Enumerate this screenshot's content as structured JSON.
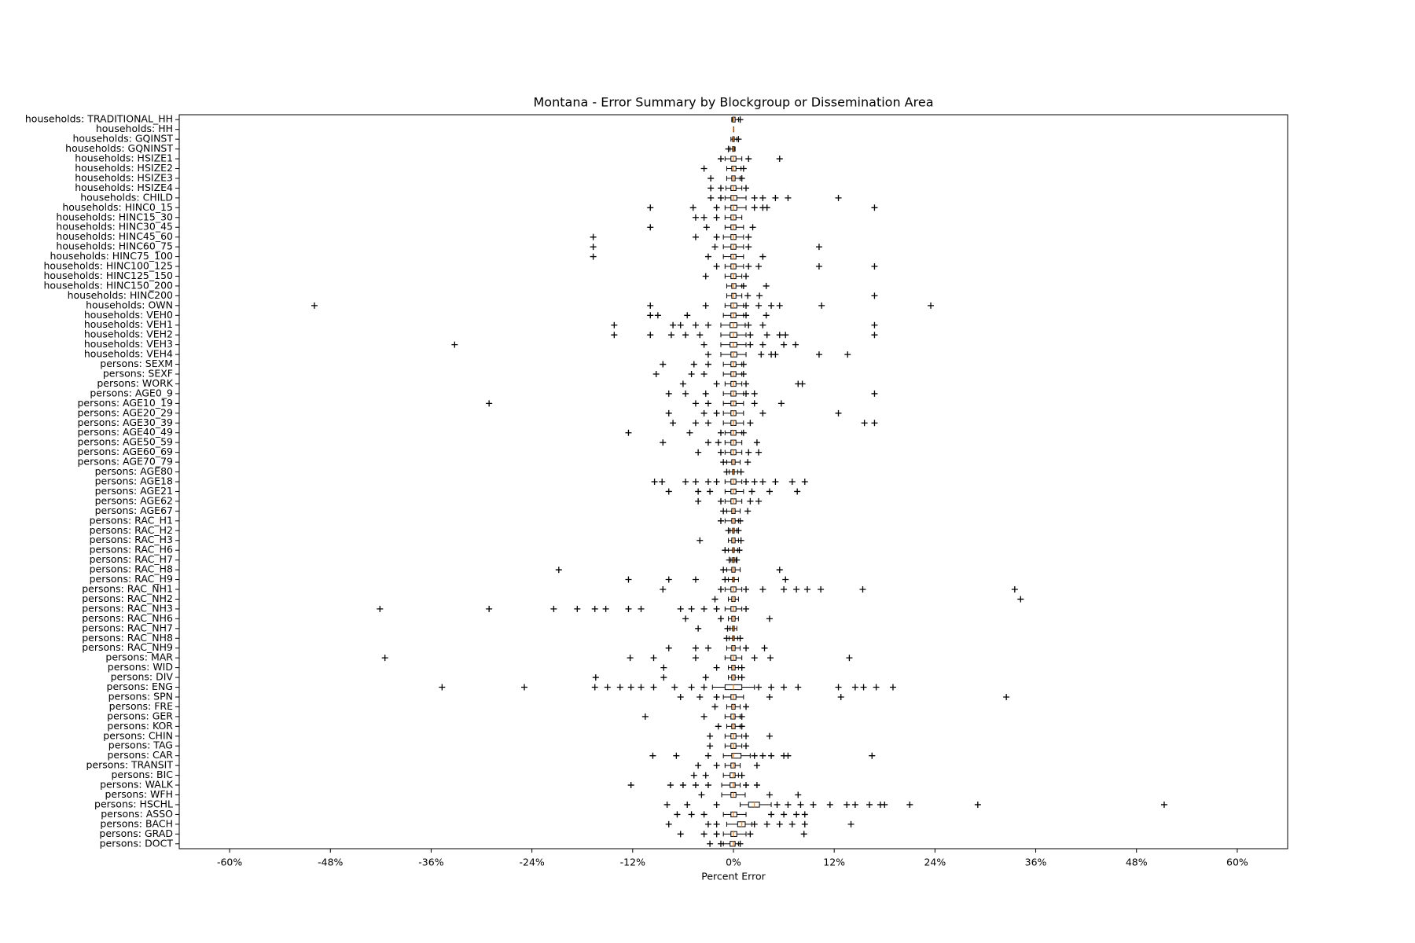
{
  "chart_data": {
    "type": "boxplot",
    "orientation": "horizontal",
    "title": "Montana - Error Summary by Blockgroup or Dissemination Area",
    "x_label": "Percent Error",
    "xlim": [
      -66,
      66
    ],
    "xticks": [
      {
        "value": -60,
        "label": "-60%"
      },
      {
        "value": -48,
        "label": "-48%"
      },
      {
        "value": -36,
        "label": "-36%"
      },
      {
        "value": -24,
        "label": "-24%"
      },
      {
        "value": -12,
        "label": "-12%"
      },
      {
        "value": 0,
        "label": "0%"
      },
      {
        "value": 12,
        "label": "12%"
      },
      {
        "value": 24,
        "label": "24%"
      },
      {
        "value": 36,
        "label": "36%"
      },
      {
        "value": 48,
        "label": "48%"
      },
      {
        "value": 60,
        "label": "60%"
      }
    ],
    "box_color": "#000000",
    "median_color": "#ff7f0e",
    "flier_color": "#000000",
    "categories": [
      "households: TRADITIONAL_HH",
      "households: HH",
      "households: GQINST",
      "households: GQNINST",
      "households: HSIZE1",
      "households: HSIZE2",
      "households: HSIZE3",
      "households: HSIZE4",
      "households: CHILD",
      "households: HINC0_15",
      "households: HINC15_30",
      "households: HINC30_45",
      "households: HINC45_60",
      "households: HINC60_75",
      "households: HINC75_100",
      "households: HINC100_125",
      "households: HINC125_150",
      "households: HINC150_200",
      "households: HINC200",
      "households: OWN",
      "households: VEH0",
      "households: VEH1",
      "households: VEH2",
      "households: VEH3",
      "households: VEH4",
      "persons: SEXM",
      "persons: SEXF",
      "persons: WORK",
      "persons: AGE0_9",
      "persons: AGE10_19",
      "persons: AGE20_29",
      "persons: AGE30_39",
      "persons: AGE40_49",
      "persons: AGE50_59",
      "persons: AGE60_69",
      "persons: AGE70_79",
      "persons: AGE80",
      "persons: AGE18",
      "persons: AGE21",
      "persons: AGE62",
      "persons: AGE67",
      "persons: RAC_H1",
      "persons: RAC_H2",
      "persons: RAC_H3",
      "persons: RAC_H6",
      "persons: RAC_H7",
      "persons: RAC_H8",
      "persons: RAC_H9",
      "persons: RAC_NH1",
      "persons: RAC_NH2",
      "persons: RAC_NH3",
      "persons: RAC_NH6",
      "persons: RAC_NH7",
      "persons: RAC_NH8",
      "persons: RAC_NH9",
      "persons: MAR",
      "persons: WID",
      "persons: DIV",
      "persons: ENG",
      "persons: SPN",
      "persons: FRE",
      "persons: GER",
      "persons: KOR",
      "persons: CHIN",
      "persons: TAG",
      "persons: CAR",
      "persons: TRANSIT",
      "persons: BIC",
      "persons: WALK",
      "persons: WFH",
      "persons: HSCHL",
      "persons: ASSO",
      "persons: BACH",
      "persons: GRAD",
      "persons: DOCT"
    ],
    "boxes": [
      {
        "low": -0.2,
        "q1": -0.1,
        "median": 0,
        "q3": 0.2,
        "high": 0.6,
        "fliers": [
          0.8
        ]
      },
      {
        "low": 0,
        "q1": 0,
        "median": 0,
        "q3": 0,
        "high": 0,
        "fliers": []
      },
      {
        "low": -0.3,
        "q1": -0.1,
        "median": 0,
        "q3": 0.1,
        "high": 0.4,
        "fliers": [
          0.6
        ]
      },
      {
        "low": -0.4,
        "q1": -0.1,
        "median": 0,
        "q3": 0.1,
        "high": 0.2,
        "fliers": [
          -0.6
        ]
      },
      {
        "low": -1,
        "q1": -0.3,
        "median": 0,
        "q3": 0.3,
        "high": 1,
        "fliers": [
          -1.5,
          1.8,
          5.5
        ]
      },
      {
        "low": -0.8,
        "q1": -0.2,
        "median": 0,
        "q3": 0.3,
        "high": 0.9,
        "fliers": [
          -3.5,
          1.2
        ]
      },
      {
        "low": -0.8,
        "q1": -0.2,
        "median": 0,
        "q3": 0.2,
        "high": 0.8,
        "fliers": [
          -2.7,
          1
        ]
      },
      {
        "low": -0.9,
        "q1": -0.3,
        "median": 0,
        "q3": 0.3,
        "high": 1,
        "fliers": [
          -2.7,
          -1.5,
          1.5
        ]
      },
      {
        "low": -1,
        "q1": -0.3,
        "median": 0,
        "q3": 0.4,
        "high": 1.5,
        "fliers": [
          -2.7,
          -1.5,
          2.5,
          3.5,
          5,
          6.5,
          12.5
        ]
      },
      {
        "low": -1,
        "q1": -0.3,
        "median": 0,
        "q3": 0.4,
        "high": 1.5,
        "fliers": [
          -9.9,
          -4.8,
          -2,
          2.5,
          3.5,
          4,
          16.8
        ]
      },
      {
        "low": -1,
        "q1": -0.3,
        "median": 0,
        "q3": 0.3,
        "high": 1,
        "fliers": [
          -4.5,
          -3.5,
          -2
        ]
      },
      {
        "low": -1,
        "q1": -0.3,
        "median": 0,
        "q3": 0.3,
        "high": 1.2,
        "fliers": [
          -9.9,
          -3.2,
          2.3
        ]
      },
      {
        "low": -1.2,
        "q1": -0.3,
        "median": 0,
        "q3": 0.3,
        "high": 1.2,
        "fliers": [
          -16.7,
          -4.5,
          -2,
          1.8
        ]
      },
      {
        "low": -1.2,
        "q1": -0.3,
        "median": 0,
        "q3": 0.3,
        "high": 1.2,
        "fliers": [
          -16.7,
          -2.2,
          1.8,
          10.2
        ]
      },
      {
        "low": -1.2,
        "q1": -0.3,
        "median": 0,
        "q3": 0.3,
        "high": 1.2,
        "fliers": [
          -16.7,
          -3,
          3.5
        ]
      },
      {
        "low": -1,
        "q1": -0.3,
        "median": 0,
        "q3": 0.3,
        "high": 1.2,
        "fliers": [
          -2,
          1.8,
          3,
          10.2,
          16.8
        ]
      },
      {
        "low": -1,
        "q1": -0.3,
        "median": 0,
        "q3": 0.3,
        "high": 1,
        "fliers": [
          -3.3,
          1.5
        ]
      },
      {
        "low": -0.8,
        "q1": -0.2,
        "median": 0,
        "q3": 0.3,
        "high": 1,
        "fliers": [
          1.2,
          3.9
        ]
      },
      {
        "low": -0.8,
        "q1": -0.2,
        "median": 0,
        "q3": 0.3,
        "high": 1,
        "fliers": [
          1.7,
          3.1,
          16.8
        ]
      },
      {
        "low": -1,
        "q1": -0.3,
        "median": 0,
        "q3": 0.4,
        "high": 1.2,
        "fliers": [
          -49.9,
          -9.9,
          -3.3,
          1.5,
          3,
          4.5,
          5.5,
          10.5,
          23.5
        ]
      },
      {
        "low": -1.2,
        "q1": -0.3,
        "median": 0,
        "q3": 0.3,
        "high": 1.2,
        "fliers": [
          -9.9,
          -9,
          -5.5,
          1.5,
          3.9
        ]
      },
      {
        "low": -1.5,
        "q1": -0.4,
        "median": 0,
        "q3": 0.4,
        "high": 1.4,
        "fliers": [
          -14.2,
          -7.2,
          -6.3,
          -4.5,
          -3,
          1.8,
          3.5,
          16.8
        ]
      },
      {
        "low": -1.5,
        "q1": -0.4,
        "median": 0,
        "q3": 0.4,
        "high": 1.5,
        "fliers": [
          -14.2,
          -9.9,
          -7.4,
          -5.7,
          -4,
          2,
          4,
          5.5,
          6.2,
          16.8
        ]
      },
      {
        "low": -1.5,
        "q1": -0.4,
        "median": 0,
        "q3": 0.4,
        "high": 1.5,
        "fliers": [
          -33.2,
          -3.5,
          2,
          3.5,
          6,
          7.4
        ]
      },
      {
        "low": -1.5,
        "q1": -0.3,
        "median": 0,
        "q3": 0.4,
        "high": 1.5,
        "fliers": [
          -3,
          3.3,
          4.5,
          5,
          10.2,
          13.6
        ]
      },
      {
        "low": -1.2,
        "q1": -0.3,
        "median": 0,
        "q3": 0.3,
        "high": 1,
        "fliers": [
          -8.4,
          -4.7,
          -3,
          1.2
        ]
      },
      {
        "low": -1.2,
        "q1": -0.3,
        "median": 0,
        "q3": 0.3,
        "high": 1,
        "fliers": [
          -9.2,
          -5,
          -3.5,
          1.2
        ]
      },
      {
        "low": -1,
        "q1": -0.3,
        "median": 0,
        "q3": 0.3,
        "high": 1,
        "fliers": [
          -6,
          -2,
          1.5,
          7.7,
          8.2
        ]
      },
      {
        "low": -1.2,
        "q1": -0.3,
        "median": 0,
        "q3": 0.3,
        "high": 1.2,
        "fliers": [
          -7.7,
          -5.7,
          -3.3,
          1.5,
          2.5,
          16.8
        ]
      },
      {
        "low": -1.2,
        "q1": -0.3,
        "median": 0,
        "q3": 0.3,
        "high": 1.2,
        "fliers": [
          -29.1,
          -4.5,
          -3,
          2.5,
          5.7
        ]
      },
      {
        "low": -1.2,
        "q1": -0.3,
        "median": 0,
        "q3": 0.3,
        "high": 1.2,
        "fliers": [
          -7.7,
          -3.5,
          -2,
          3.5,
          12.5
        ]
      },
      {
        "low": -1.2,
        "q1": -0.3,
        "median": 0,
        "q3": 0.3,
        "high": 1.2,
        "fliers": [
          -7.2,
          -4.5,
          -3,
          2,
          15.6,
          16.8
        ]
      },
      {
        "low": -1,
        "q1": -0.3,
        "median": 0,
        "q3": 0.3,
        "high": 1,
        "fliers": [
          -12.5,
          -5.2,
          -1.5,
          1.2
        ]
      },
      {
        "low": -1,
        "q1": -0.3,
        "median": 0,
        "q3": 0.3,
        "high": 1,
        "fliers": [
          -8.4,
          -3,
          -1.8,
          2.8
        ]
      },
      {
        "low": -1,
        "q1": -0.3,
        "median": 0,
        "q3": 0.3,
        "high": 1,
        "fliers": [
          -4.2,
          -1.5,
          1.8,
          3
        ]
      },
      {
        "low": -0.8,
        "q1": -0.2,
        "median": 0,
        "q3": 0.2,
        "high": 0.8,
        "fliers": [
          -1.2,
          1.7
        ]
      },
      {
        "low": -0.5,
        "q1": -0.1,
        "median": 0,
        "q3": 0.1,
        "high": 0.5,
        "fliers": [
          -0.8,
          0.9
        ]
      },
      {
        "low": -1,
        "q1": -0.3,
        "median": 0,
        "q3": 0.3,
        "high": 1,
        "fliers": [
          -9.4,
          -8.5,
          -5.7,
          -4.5,
          -3,
          -2,
          1.5,
          2.5,
          3.5,
          5,
          7,
          8.5
        ]
      },
      {
        "low": -1,
        "q1": -0.3,
        "median": 0,
        "q3": 0.3,
        "high": 1.2,
        "fliers": [
          -7.7,
          -4.2,
          -2.8,
          2.2,
          4.3,
          7.6
        ]
      },
      {
        "low": -1,
        "q1": -0.3,
        "median": 0,
        "q3": 0.3,
        "high": 1,
        "fliers": [
          -4.2,
          -1.5,
          2,
          3
        ]
      },
      {
        "low": -0.8,
        "q1": -0.2,
        "median": 0,
        "q3": 0.2,
        "high": 0.8,
        "fliers": [
          -1.2,
          1.7
        ]
      },
      {
        "low": -1,
        "q1": -0.2,
        "median": 0,
        "q3": 0.2,
        "high": 0.6,
        "fliers": [
          -1.5,
          0.8
        ]
      },
      {
        "low": -0.4,
        "q1": -0.1,
        "median": 0,
        "q3": 0.1,
        "high": 0.4,
        "fliers": [
          -0.6,
          0.6
        ]
      },
      {
        "low": -0.6,
        "q1": -0.2,
        "median": 0,
        "q3": 0.2,
        "high": 0.6,
        "fliers": [
          -4,
          0.9
        ]
      },
      {
        "low": -0.6,
        "q1": -0.1,
        "median": 0,
        "q3": 0.1,
        "high": 0.5,
        "fliers": [
          -1,
          0.7
        ]
      },
      {
        "low": -0.3,
        "q1": -0.1,
        "median": 0,
        "q3": 0.1,
        "high": 0.3,
        "fliers": [
          -0.5,
          0.4
        ]
      },
      {
        "low": -0.8,
        "q1": -0.2,
        "median": 0,
        "q3": 0.2,
        "high": 0.8,
        "fliers": [
          -20.8,
          -1.2,
          5.5
        ]
      },
      {
        "low": -0.6,
        "q1": -0.1,
        "median": 0,
        "q3": 0.1,
        "high": 0.6,
        "fliers": [
          -12.5,
          -7.7,
          -4.5,
          -1,
          6.2
        ]
      },
      {
        "low": -1,
        "q1": -0.3,
        "median": 0,
        "q3": 0.3,
        "high": 1,
        "fliers": [
          -8.4,
          -1.5,
          1.5,
          3.5,
          6,
          7.5,
          8.8,
          10.4,
          15.4,
          33.5
        ]
      },
      {
        "low": -0.6,
        "q1": -0.2,
        "median": 0,
        "q3": 0.2,
        "high": 0.6,
        "fliers": [
          -2.2,
          34.2
        ]
      },
      {
        "low": -1,
        "q1": -0.3,
        "median": 0,
        "q3": 0.3,
        "high": 1,
        "fliers": [
          -42.1,
          -29.1,
          -21.4,
          -18.6,
          -16.5,
          -15.2,
          -12.5,
          -11,
          -6.3,
          -5,
          -3.5,
          -2,
          1.5
        ]
      },
      {
        "low": -0.6,
        "q1": -0.2,
        "median": 0,
        "q3": 0.2,
        "high": 0.6,
        "fliers": [
          -5.7,
          -1.5,
          4.3
        ]
      },
      {
        "low": -0.4,
        "q1": -0.1,
        "median": 0,
        "q3": 0.1,
        "high": 0.4,
        "fliers": [
          -4.2,
          -0.7
        ]
      },
      {
        "low": -0.5,
        "q1": -0.1,
        "median": 0,
        "q3": 0.1,
        "high": 0.5,
        "fliers": [
          -0.8,
          0.8
        ]
      },
      {
        "low": -0.8,
        "q1": -0.2,
        "median": 0,
        "q3": 0.2,
        "high": 0.8,
        "fliers": [
          -7.7,
          -4.5,
          -3,
          1.5,
          3.7
        ]
      },
      {
        "low": -1,
        "q1": -0.3,
        "median": 0,
        "q3": 0.3,
        "high": 1,
        "fliers": [
          -41.5,
          -12.3,
          -9.5,
          -4.5,
          2.5,
          4.4,
          13.8
        ]
      },
      {
        "low": -0.6,
        "q1": -0.2,
        "median": 0,
        "q3": 0.2,
        "high": 0.6,
        "fliers": [
          -8.3,
          -2,
          1
        ]
      },
      {
        "low": -0.6,
        "q1": -0.2,
        "median": 0,
        "q3": 0.2,
        "high": 0.6,
        "fliers": [
          -16.4,
          -8.3,
          -3.3,
          1
        ]
      },
      {
        "low": -2.5,
        "q1": -1,
        "median": 0,
        "q3": 1,
        "high": 2.5,
        "fliers": [
          -34.7,
          -24.9,
          -16.5,
          -15,
          -13.5,
          -12.2,
          -11,
          -9.5,
          -7,
          -5,
          -3.5,
          3,
          4.5,
          6,
          7.7,
          12.5,
          14.5,
          15.5,
          17,
          19
        ]
      },
      {
        "low": -1.2,
        "q1": -0.3,
        "median": 0,
        "q3": 0.3,
        "high": 1.2,
        "fliers": [
          -6.3,
          -4,
          -2,
          4.3,
          12.8,
          32.5
        ]
      },
      {
        "low": -0.8,
        "q1": -0.2,
        "median": 0,
        "q3": 0.2,
        "high": 0.8,
        "fliers": [
          -2.2,
          1.5
        ]
      },
      {
        "low": -1,
        "q1": -0.3,
        "median": 0,
        "q3": 0.2,
        "high": 0.8,
        "fliers": [
          -10.5,
          -3.5,
          1
        ]
      },
      {
        "low": -0.8,
        "q1": -0.2,
        "median": 0,
        "q3": 0.2,
        "high": 0.8,
        "fliers": [
          -1.8,
          1
        ]
      },
      {
        "low": -1,
        "q1": -0.3,
        "median": 0,
        "q3": 0.3,
        "high": 1,
        "fliers": [
          -2.8,
          1.5,
          4.3
        ]
      },
      {
        "low": -1,
        "q1": -0.3,
        "median": 0,
        "q3": 0.3,
        "high": 1,
        "fliers": [
          -2.8,
          1.5
        ]
      },
      {
        "low": -1.2,
        "q1": -0.2,
        "median": 0,
        "q3": 0.9,
        "high": 2,
        "fliers": [
          -9.6,
          -6.8,
          -3,
          2.5,
          3.5,
          4.5,
          6,
          6.5,
          16.5
        ]
      },
      {
        "low": -1,
        "q1": -0.3,
        "median": 0,
        "q3": 0.2,
        "high": 0.8,
        "fliers": [
          -4.2,
          -2,
          2.8
        ]
      },
      {
        "low": -1.2,
        "q1": -0.4,
        "median": 0,
        "q3": 0.2,
        "high": 0.6,
        "fliers": [
          -4.7,
          -3.3,
          1
        ]
      },
      {
        "low": -1.4,
        "q1": -0.4,
        "median": 0,
        "q3": 0.2,
        "high": 0.8,
        "fliers": [
          -12.2,
          -7.5,
          -6,
          -4.5,
          -3,
          1.5,
          2.8
        ]
      },
      {
        "low": -1.4,
        "q1": -0.3,
        "median": 0,
        "q3": 0.3,
        "high": 1.4,
        "fliers": [
          -3.8,
          4.3,
          7.7
        ]
      },
      {
        "low": 0.8,
        "q1": 1.8,
        "median": 2.5,
        "q3": 3.1,
        "high": 4.5,
        "fliers": [
          -7.9,
          -5.5,
          -2,
          5.2,
          6.5,
          8,
          9.5,
          11.5,
          13.5,
          14.5,
          16.2,
          17.5,
          18,
          21,
          29.1,
          51.3
        ]
      },
      {
        "low": -1.2,
        "q1": -0.3,
        "median": 0,
        "q3": 0.4,
        "high": 1.5,
        "fliers": [
          -6.7,
          -5,
          -3.5,
          4.5,
          6,
          7.5,
          8.5
        ]
      },
      {
        "low": -0.8,
        "q1": 0.5,
        "median": 1,
        "q3": 1.4,
        "high": 2.2,
        "fliers": [
          -7.7,
          -3,
          -2,
          2.5,
          4,
          5.5,
          7,
          8.5,
          14
        ]
      },
      {
        "low": -1.2,
        "q1": -0.3,
        "median": 0,
        "q3": 0.4,
        "high": 1.5,
        "fliers": [
          -6.3,
          -3.5,
          -2,
          2,
          8.4
        ]
      },
      {
        "low": -1.2,
        "q1": -0.4,
        "median": 0,
        "q3": 0.2,
        "high": 0.6,
        "fliers": [
          -2.8,
          -1.5,
          0.8
        ]
      }
    ]
  }
}
